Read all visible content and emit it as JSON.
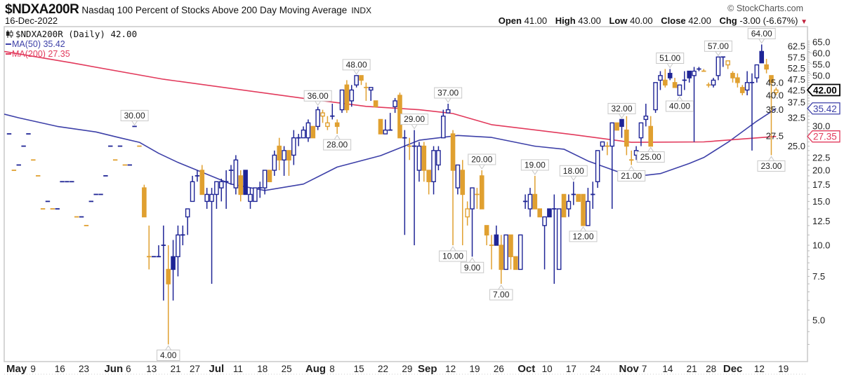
{
  "header": {
    "symbol": "$NDXA200R",
    "description": "Nasdaq 100 Percent of Stocks Above 200 Day Moving Average",
    "exchange": "INDX",
    "date": "16-Dec-2022",
    "copyright": "© StockCharts.com",
    "open_label": "Open",
    "open": "41.00",
    "high_label": "High",
    "high": "43.00",
    "low_label": "Low",
    "low": "40.00",
    "close_label": "Close",
    "close": "42.00",
    "chg_label": "Chg",
    "chg": "-3.00 (-6.67%)",
    "chg_arrow": "▼"
  },
  "legend": {
    "main": "$NDXA200R (Daily) 42.00",
    "ma50": "MA(50) 35.42",
    "ma200": "MA(200) 27.35"
  },
  "colors": {
    "up": "#1f2596",
    "down": "#e0a030",
    "ma50": "#3d40a8",
    "ma200": "#e23a5c"
  },
  "chart_data": {
    "type": "candlestick",
    "title": "$NDXA200R Nasdaq 100 Percent of Stocks Above 200 Day Moving Average",
    "yscale": "log",
    "ylim": [
      3.4,
      68
    ],
    "candles_ohlc": [
      [
        28,
        28,
        28,
        28
      ],
      [
        20,
        20,
        20,
        20
      ],
      [
        21,
        21,
        21,
        21
      ],
      [
        25,
        25,
        25,
        25
      ],
      [
        28,
        28,
        28,
        28
      ],
      [
        22,
        22,
        22,
        22
      ],
      [
        19,
        19,
        19,
        19
      ],
      [
        14,
        14,
        14,
        14
      ],
      [
        15,
        15,
        15,
        15
      ],
      [
        14,
        14,
        14,
        14
      ],
      [
        14,
        14,
        14,
        14
      ],
      [
        18,
        18,
        18,
        18
      ],
      [
        18,
        18,
        18,
        18
      ],
      [
        18,
        18,
        18,
        18
      ],
      [
        13,
        13,
        13,
        13
      ],
      [
        13,
        13,
        13,
        13
      ],
      [
        12,
        12,
        12,
        12
      ],
      [
        15,
        15,
        15,
        15
      ],
      [
        16,
        16,
        16,
        16
      ],
      [
        16,
        16,
        16,
        16
      ],
      [
        19,
        19,
        19,
        19
      ],
      [
        25,
        25,
        25,
        25
      ],
      [
        22,
        22,
        22,
        22
      ],
      [
        25,
        25,
        25,
        25
      ],
      [
        21,
        21,
        21,
        21
      ],
      [
        21,
        21,
        21,
        21
      ],
      [
        30,
        30,
        30,
        30
      ],
      [
        25,
        25,
        25,
        25
      ],
      [
        17,
        17.5,
        13,
        13
      ],
      [
        9,
        12,
        8,
        9
      ],
      [
        9,
        9,
        9,
        9
      ],
      [
        9,
        10,
        9,
        9
      ],
      [
        10,
        12,
        6,
        10
      ],
      [
        8,
        10,
        4,
        7
      ],
      [
        9,
        10.5,
        6,
        8
      ],
      [
        9,
        12,
        7.5,
        11
      ],
      [
        11,
        12,
        10,
        11
      ],
      [
        13,
        14,
        11,
        14
      ],
      [
        15,
        19,
        15,
        18
      ],
      [
        19,
        20,
        18,
        19
      ],
      [
        20,
        21,
        16,
        16
      ],
      [
        15,
        17,
        14,
        16
      ],
      [
        15,
        17,
        7,
        16
      ],
      [
        16,
        18,
        14,
        18
      ],
      [
        17,
        18.5,
        15,
        18
      ],
      [
        18,
        20,
        14,
        18
      ],
      [
        20,
        21,
        17.5,
        20
      ],
      [
        17,
        23,
        16,
        22
      ],
      [
        19,
        20,
        15,
        16
      ],
      [
        20,
        20,
        16,
        16
      ],
      [
        15,
        17,
        14,
        16
      ],
      [
        15,
        17,
        15,
        17
      ],
      [
        17,
        18,
        15.5,
        17
      ],
      [
        17,
        20,
        16,
        20
      ],
      [
        20,
        20,
        18,
        18
      ],
      [
        20,
        24,
        19,
        23
      ],
      [
        25,
        27,
        20,
        22
      ],
      [
        22,
        25,
        19,
        24
      ],
      [
        24,
        24,
        19,
        22
      ],
      [
        23,
        29,
        21,
        27
      ],
      [
        27,
        28,
        25,
        27
      ],
      [
        27,
        30,
        27,
        29
      ],
      [
        27,
        32,
        26,
        31
      ],
      [
        30,
        30,
        27,
        27
      ],
      [
        30,
        36,
        29,
        35
      ],
      [
        33,
        35,
        31,
        34
      ],
      [
        30,
        33,
        29,
        31
      ],
      [
        33,
        37,
        32,
        33
      ],
      [
        31,
        32,
        28,
        30
      ],
      [
        35,
        42,
        34,
        42
      ],
      [
        44,
        46,
        34,
        35
      ],
      [
        38,
        44,
        36,
        42
      ],
      [
        44,
        48,
        43,
        48
      ],
      [
        48,
        48,
        44,
        46
      ],
      [
        43,
        45,
        38,
        43
      ],
      [
        42,
        43,
        38,
        43
      ],
      [
        38,
        38,
        36,
        36
      ],
      [
        32,
        32,
        28,
        28
      ],
      [
        28,
        32,
        28,
        29
      ],
      [
        29,
        34,
        29,
        29
      ],
      [
        36,
        39,
        34,
        38
      ],
      [
        40,
        41,
        27,
        27
      ],
      [
        27,
        29,
        11,
        27
      ],
      [
        25,
        27,
        22,
        25
      ],
      [
        25,
        29,
        10,
        25
      ],
      [
        20,
        26,
        18,
        25
      ],
      [
        25,
        26,
        18,
        20
      ],
      [
        20,
        20,
        16,
        18
      ],
      [
        18,
        25,
        16,
        24
      ],
      [
        21,
        25,
        20,
        24
      ],
      [
        27,
        35,
        27,
        33
      ],
      [
        34,
        37,
        34,
        35
      ],
      [
        28,
        29,
        10,
        20
      ],
      [
        17,
        21,
        16,
        21
      ],
      [
        20,
        22,
        10,
        16
      ],
      [
        13,
        15,
        12,
        14
      ],
      [
        14,
        17,
        9,
        17
      ],
      [
        16,
        17,
        14,
        16
      ],
      [
        19,
        20,
        14,
        14
      ],
      [
        12,
        12,
        10,
        11
      ],
      [
        10,
        11,
        8,
        10
      ],
      [
        11,
        12,
        10,
        10
      ],
      [
        10,
        11,
        7,
        8
      ],
      [
        8,
        11,
        8,
        11
      ],
      [
        11,
        11,
        8,
        9
      ],
      [
        9,
        9,
        8,
        8
      ],
      [
        8,
        11,
        8,
        11
      ],
      [
        15,
        16,
        14,
        15
      ],
      [
        14,
        17,
        13,
        16
      ],
      [
        16,
        19,
        14,
        14
      ],
      [
        14,
        14,
        13,
        13
      ],
      [
        12,
        13,
        8,
        13
      ],
      [
        14,
        14,
        13,
        13
      ],
      [
        14,
        16,
        7,
        14
      ],
      [
        8,
        14,
        8,
        14
      ],
      [
        16,
        16,
        13,
        13
      ],
      [
        14,
        16,
        13,
        15
      ],
      [
        16,
        18,
        14.5,
        16
      ],
      [
        16,
        16,
        15,
        15
      ],
      [
        16,
        16,
        12,
        12
      ],
      [
        12,
        17,
        12,
        15
      ],
      [
        16,
        18,
        14,
        16
      ],
      [
        18,
        24,
        17,
        24
      ],
      [
        25,
        26,
        24,
        26
      ],
      [
        25,
        26,
        23,
        25
      ],
      [
        25,
        31,
        14,
        31
      ],
      [
        31,
        31,
        29,
        29
      ],
      [
        32,
        32,
        27,
        30
      ],
      [
        29,
        33,
        23,
        25
      ],
      [
        22,
        24,
        21,
        22
      ],
      [
        23,
        25,
        22,
        24
      ],
      [
        27,
        31,
        25,
        31
      ],
      [
        32,
        37,
        30,
        33
      ],
      [
        30,
        33,
        25,
        25
      ],
      [
        35,
        45,
        34,
        45
      ],
      [
        46,
        50,
        42,
        48
      ],
      [
        46,
        51,
        43,
        44
      ],
      [
        49,
        51,
        46,
        47
      ],
      [
        45,
        47,
        43,
        43
      ],
      [
        40,
        44,
        40,
        44
      ],
      [
        46,
        50,
        42,
        46
      ],
      [
        50,
        50,
        45,
        47
      ],
      [
        48,
        52,
        26,
        50
      ],
      [
        51,
        52,
        50,
        51
      ],
      [
        50,
        51,
        50,
        50
      ],
      [
        44,
        45,
        43,
        44
      ],
      [
        44,
        47,
        43,
        46
      ],
      [
        48,
        57,
        46,
        57
      ],
      [
        57,
        57,
        52,
        57
      ],
      [
        53,
        55,
        51,
        55
      ],
      [
        49,
        50,
        45,
        47
      ],
      [
        47,
        49,
        43,
        45
      ],
      [
        43,
        44,
        40,
        41
      ],
      [
        42,
        50,
        40,
        45
      ],
      [
        45,
        49,
        24,
        45
      ],
      [
        47,
        53,
        45,
        53
      ],
      [
        60,
        64,
        54,
        54
      ],
      [
        53,
        56,
        49,
        51
      ],
      [
        48,
        48,
        23,
        45
      ],
      [
        41,
        43,
        40,
        42
      ]
    ],
    "ma50": [
      [
        -1,
        33.6
      ],
      [
        2,
        32.5
      ],
      [
        10,
        30
      ],
      [
        18,
        28.5
      ],
      [
        23,
        27
      ],
      [
        27,
        25.9
      ],
      [
        31,
        23.4
      ],
      [
        35,
        21.5
      ],
      [
        39,
        20
      ],
      [
        46,
        17.6
      ],
      [
        53,
        16.6
      ],
      [
        61,
        17.6
      ],
      [
        68,
        20.6
      ],
      [
        77,
        22.9
      ],
      [
        85,
        26.4
      ],
      [
        93,
        27.6
      ],
      [
        100,
        27.1
      ],
      [
        109,
        25
      ],
      [
        115,
        24.3
      ],
      [
        120,
        21.8
      ],
      [
        126,
        19.8
      ],
      [
        132,
        19.1
      ],
      [
        135,
        19.4
      ],
      [
        141,
        21.3
      ],
      [
        144,
        22.5
      ],
      [
        149,
        25.9
      ],
      [
        155,
        31.5
      ],
      [
        159,
        35.42
      ]
    ],
    "ma200": [
      [
        -1,
        60
      ],
      [
        13,
        54
      ],
      [
        32,
        46.4
      ],
      [
        61,
        38.9
      ],
      [
        74,
        36.1
      ],
      [
        85,
        35
      ],
      [
        92,
        33.8
      ],
      [
        100,
        30.5
      ],
      [
        117,
        27.8
      ],
      [
        129,
        25.9
      ],
      [
        144,
        26
      ],
      [
        159,
        27.35
      ]
    ],
    "annotations": [
      {
        "index": 26,
        "text": "30.00",
        "pos": "above"
      },
      {
        "index": 33,
        "text": "4.00",
        "pos": "below"
      },
      {
        "index": 64,
        "text": "36.00",
        "pos": "above"
      },
      {
        "index": 68,
        "text": "28.00",
        "pos": "below"
      },
      {
        "index": 72,
        "text": "48.00",
        "pos": "above"
      },
      {
        "index": 84,
        "text": "29.00",
        "pos": "above"
      },
      {
        "index": 91,
        "text": "37.00",
        "pos": "above"
      },
      {
        "index": 92,
        "text": "10.00",
        "pos": "below"
      },
      {
        "index": 96,
        "text": "9.00",
        "pos": "below"
      },
      {
        "index": 98,
        "text": "20.00",
        "pos": "above"
      },
      {
        "index": 102,
        "text": "7.00",
        "pos": "below"
      },
      {
        "index": 109,
        "text": "19.00",
        "pos": "above"
      },
      {
        "index": 117,
        "text": "18.00",
        "pos": "above"
      },
      {
        "index": 119,
        "text": "12.00",
        "pos": "below"
      },
      {
        "index": 127,
        "text": "32.00",
        "pos": "above"
      },
      {
        "index": 129,
        "text": "21.00",
        "pos": "below"
      },
      {
        "index": 133,
        "text": "25.00",
        "pos": "below"
      },
      {
        "index": 137,
        "text": "51.00",
        "pos": "above"
      },
      {
        "index": 139,
        "text": "40.00",
        "pos": "below"
      },
      {
        "index": 147,
        "text": "57.00",
        "pos": "above"
      },
      {
        "index": 156,
        "text": "64.00",
        "pos": "above"
      },
      {
        "index": 158,
        "text": "23.00",
        "pos": "below"
      }
    ],
    "yticks": [
      "5.0",
      "7.5",
      "10.0",
      "12.5",
      "15.0",
      "17.5",
      "20.0",
      "22.5",
      "25.0",
      "27.5",
      "30.0",
      "32.5",
      "35.0",
      "37.5",
      "40.0",
      "42.5",
      "45.0",
      "47.5",
      "50.0",
      "52.5",
      "55.0",
      "57.5",
      "60.0",
      "62.5",
      "65.0"
    ],
    "price_markers": [
      {
        "label": "42.00",
        "value": 42,
        "color": "#000000",
        "bold": true
      },
      {
        "label": "35.42",
        "value": 35.42,
        "color": "#3d40a8",
        "bold": false
      },
      {
        "label": "27.35",
        "value": 27.35,
        "color": "#e23a5c",
        "bold": false
      }
    ],
    "xticks": [
      {
        "label": "May",
        "index": 0,
        "bold": true
      },
      {
        "label": "9",
        "index": 5
      },
      {
        "label": "16",
        "index": 10
      },
      {
        "label": "23",
        "index": 15
      },
      {
        "label": "Jun",
        "index": 20.3,
        "bold": true
      },
      {
        "label": "6",
        "index": 24
      },
      {
        "label": "13",
        "index": 29
      },
      {
        "label": "21",
        "index": 34
      },
      {
        "label": "27",
        "index": 38
      },
      {
        "label": "Jul",
        "index": 42,
        "bold": true
      },
      {
        "label": "11",
        "index": 47
      },
      {
        "label": "18",
        "index": 52
      },
      {
        "label": "25",
        "index": 57
      },
      {
        "label": "Aug",
        "index": 62,
        "bold": true
      },
      {
        "label": "8",
        "index": 67
      },
      {
        "label": "15",
        "index": 72
      },
      {
        "label": "22",
        "index": 77
      },
      {
        "label": "29",
        "index": 82
      },
      {
        "label": "Sep",
        "index": 85.3,
        "bold": true
      },
      {
        "label": "12",
        "index": 91
      },
      {
        "label": "19",
        "index": 96
      },
      {
        "label": "26",
        "index": 101
      },
      {
        "label": "Oct",
        "index": 106,
        "bold": true
      },
      {
        "label": "10",
        "index": 111
      },
      {
        "label": "17",
        "index": 116
      },
      {
        "label": "24",
        "index": 121
      },
      {
        "label": "Nov",
        "index": 127,
        "bold": true
      },
      {
        "label": "7",
        "index": 131
      },
      {
        "label": "14",
        "index": 136
      },
      {
        "label": "21",
        "index": 141
      },
      {
        "label": "28",
        "index": 145
      },
      {
        "label": "Dec",
        "index": 148.6,
        "bold": true
      },
      {
        "label": "12",
        "index": 155
      },
      {
        "label": "19",
        "index": 160
      }
    ]
  }
}
